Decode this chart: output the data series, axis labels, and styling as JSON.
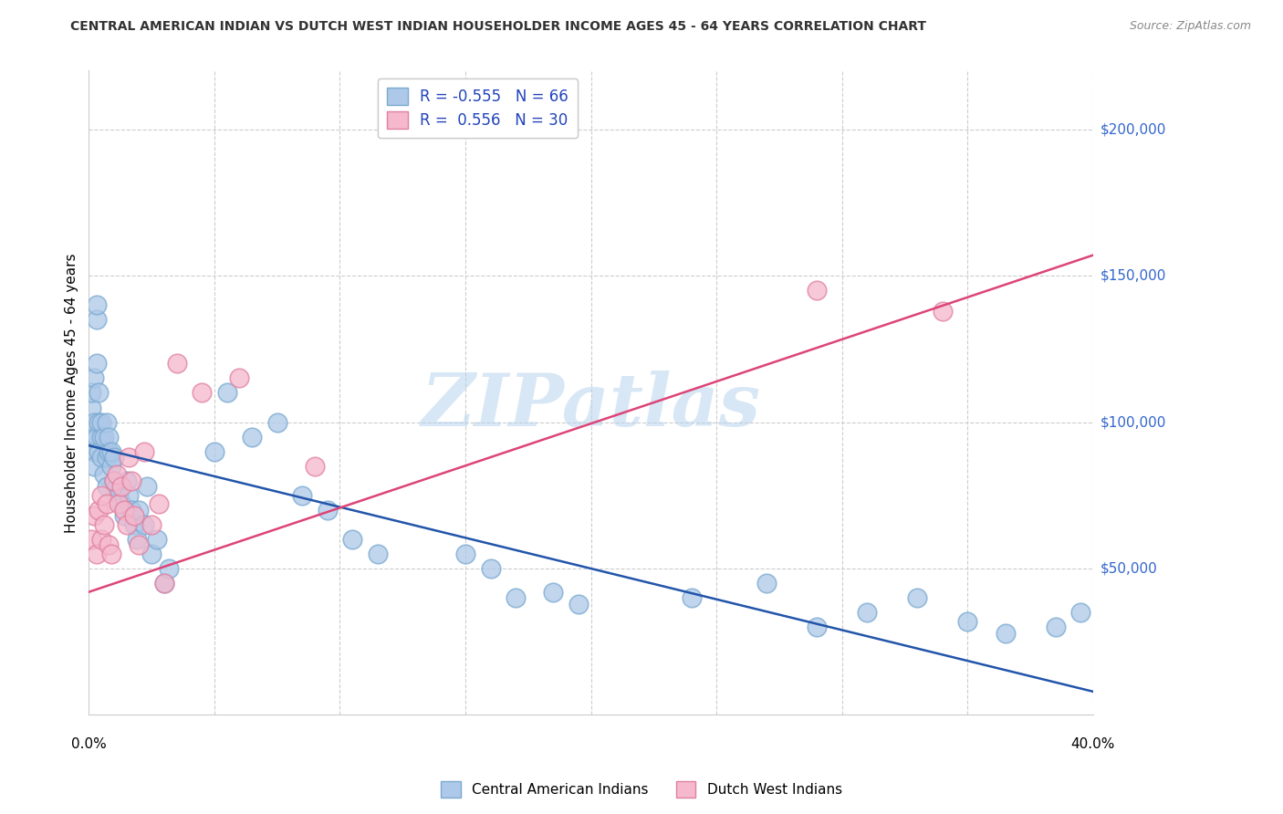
{
  "title": "CENTRAL AMERICAN INDIAN VS DUTCH WEST INDIAN HOUSEHOLDER INCOME AGES 45 - 64 YEARS CORRELATION CHART",
  "source": "Source: ZipAtlas.com",
  "ylabel": "Householder Income Ages 45 - 64 years",
  "xlim": [
    0,
    0.4
  ],
  "ylim": [
    0,
    220000
  ],
  "blue_R": "-0.555",
  "blue_N": "66",
  "pink_R": "0.556",
  "pink_N": "30",
  "blue_color": "#adc8e8",
  "blue_edge_color": "#7aaad0",
  "blue_line_color": "#2255aa",
  "pink_color": "#f5b8cc",
  "pink_edge_color": "#e080a0",
  "pink_line_color": "#dd4477",
  "watermark": "ZIPatlas",
  "legend_label_blue": "Central American Indians",
  "legend_label_pink": "Dutch West Indians",
  "blue_scatter_x": [
    0.001,
    0.001,
    0.001,
    0.002,
    0.002,
    0.002,
    0.002,
    0.003,
    0.003,
    0.003,
    0.003,
    0.004,
    0.004,
    0.004,
    0.005,
    0.005,
    0.005,
    0.006,
    0.006,
    0.007,
    0.007,
    0.007,
    0.008,
    0.008,
    0.009,
    0.009,
    0.01,
    0.01,
    0.011,
    0.012,
    0.013,
    0.014,
    0.015,
    0.016,
    0.017,
    0.018,
    0.019,
    0.02,
    0.022,
    0.023,
    0.025,
    0.027,
    0.03,
    0.032,
    0.05,
    0.055,
    0.065,
    0.075,
    0.085,
    0.095,
    0.105,
    0.115,
    0.15,
    0.16,
    0.17,
    0.185,
    0.195,
    0.24,
    0.27,
    0.29,
    0.31,
    0.33,
    0.35,
    0.365,
    0.385,
    0.395
  ],
  "blue_scatter_y": [
    95000,
    105000,
    110000,
    100000,
    90000,
    115000,
    85000,
    95000,
    120000,
    135000,
    140000,
    100000,
    110000,
    90000,
    95000,
    100000,
    88000,
    95000,
    82000,
    100000,
    88000,
    78000,
    90000,
    95000,
    85000,
    90000,
    80000,
    88000,
    78000,
    75000,
    72000,
    68000,
    80000,
    75000,
    70000,
    65000,
    60000,
    70000,
    65000,
    78000,
    55000,
    60000,
    45000,
    50000,
    90000,
    110000,
    95000,
    100000,
    75000,
    70000,
    60000,
    55000,
    55000,
    50000,
    40000,
    42000,
    38000,
    40000,
    45000,
    30000,
    35000,
    40000,
    32000,
    28000,
    30000,
    35000
  ],
  "pink_scatter_x": [
    0.001,
    0.002,
    0.003,
    0.004,
    0.005,
    0.005,
    0.006,
    0.007,
    0.008,
    0.009,
    0.01,
    0.011,
    0.012,
    0.013,
    0.014,
    0.015,
    0.016,
    0.017,
    0.018,
    0.02,
    0.022,
    0.025,
    0.028,
    0.03,
    0.035,
    0.045,
    0.06,
    0.09,
    0.29,
    0.34
  ],
  "pink_scatter_y": [
    60000,
    68000,
    55000,
    70000,
    60000,
    75000,
    65000,
    72000,
    58000,
    55000,
    80000,
    82000,
    72000,
    78000,
    70000,
    65000,
    88000,
    80000,
    68000,
    58000,
    90000,
    65000,
    72000,
    45000,
    120000,
    110000,
    115000,
    85000,
    145000,
    138000
  ],
  "blue_line_x0": 0.0,
  "blue_line_x1": 0.4,
  "blue_line_y0": 92000,
  "blue_line_y1": 8000,
  "pink_line_x0": 0.0,
  "pink_line_x1": 0.4,
  "pink_line_y0": 42000,
  "pink_line_y1": 157000
}
